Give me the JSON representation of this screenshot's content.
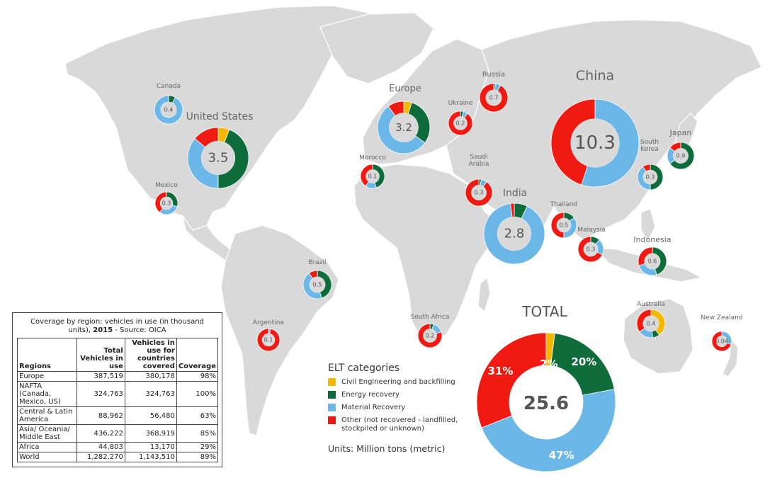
{
  "colors": {
    "civil": "#f5b800",
    "energy": "#0e6b3a",
    "material": "#6bb7e8",
    "other": "#f01a12",
    "land": "#d9d9d9"
  },
  "map_points": [
    {
      "name": "Canada",
      "value": "0.4",
      "shares": [
        0,
        8,
        92,
        0
      ]
    },
    {
      "name": "United States",
      "value": "3.5",
      "shares": [
        6,
        44,
        36,
        14
      ]
    },
    {
      "name": "Mexico",
      "value": "0.3",
      "shares": [
        0,
        30,
        30,
        40
      ]
    },
    {
      "name": "Brazil",
      "value": "0.5",
      "shares": [
        0,
        45,
        45,
        10
      ]
    },
    {
      "name": "Argentina",
      "value": "0.1",
      "shares": [
        0,
        0,
        3,
        97
      ]
    },
    {
      "name": "Europe",
      "value": "3.2",
      "shares": [
        5,
        30,
        55,
        10
      ]
    },
    {
      "name": "Morocco",
      "value": "0.1",
      "shares": [
        0,
        45,
        15,
        40
      ]
    },
    {
      "name": "Ukraine",
      "value": "0.2",
      "shares": [
        0,
        4,
        6,
        90
      ]
    },
    {
      "name": "Russia",
      "value": "0.7",
      "shares": [
        0,
        2,
        6,
        92
      ]
    },
    {
      "name": "Saudi\nArabia",
      "value": "0.3",
      "shares": [
        0,
        3,
        7,
        90
      ]
    },
    {
      "name": "South Africa",
      "value": "0.2",
      "shares": [
        0,
        5,
        15,
        80
      ]
    },
    {
      "name": "India",
      "value": "2.8",
      "shares": [
        0,
        7,
        91,
        2
      ]
    },
    {
      "name": "China",
      "value": "10.3",
      "shares": [
        0,
        0,
        55,
        45
      ]
    },
    {
      "name": "South\nKorea",
      "value": "0.3",
      "shares": [
        0,
        50,
        40,
        10
      ]
    },
    {
      "name": "Japan",
      "value": "0.9",
      "shares": [
        0,
        65,
        20,
        15
      ]
    },
    {
      "name": "Thailand",
      "value": "0.5",
      "shares": [
        0,
        15,
        35,
        50
      ]
    },
    {
      "name": "Malaysia",
      "value": "0.3",
      "shares": [
        0,
        12,
        20,
        68
      ]
    },
    {
      "name": "Indonesia",
      "value": "0.6",
      "shares": [
        0,
        45,
        25,
        30
      ]
    },
    {
      "name": "Australia",
      "value": "0.4",
      "shares": [
        40,
        8,
        17,
        35
      ]
    },
    {
      "name": "New Zealand",
      "value": "0.04",
      "shares": [
        0,
        0,
        30,
        70
      ]
    }
  ],
  "total": {
    "title": "TOTAL",
    "value": "25.6",
    "civil_pct": "2%",
    "energy_pct": "20%",
    "material_pct": "47%",
    "other_pct": "31%",
    "shares": [
      2,
      20,
      47,
      31
    ]
  },
  "legend": {
    "title": "ELT categories",
    "items": [
      {
        "label": "Civil Engineering and backfilling"
      },
      {
        "label": "Energy recovery"
      },
      {
        "label": "Material Recovery"
      },
      {
        "label": "Other (not recovered - landfilled, stockpiled or unknown)"
      }
    ],
    "units": "Units: Million tons (metric)"
  },
  "coverage_table": {
    "caption_a": "Coverage by region: vehicles in use (in thousand units), ",
    "caption_year": "2015",
    "caption_b": " - Source: OICA",
    "headers": [
      "Regions",
      "Total Vehicles in use",
      "Vehicles in use for countries covered",
      "Coverage"
    ],
    "rows": [
      [
        "Europe",
        "387,519",
        "380,178",
        "98%"
      ],
      [
        "NAFTA (Canada, Mexico, US)",
        "324,763",
        "324,763",
        "100%"
      ],
      [
        "Central & Latin America",
        "88,962",
        "56,480",
        "63%"
      ],
      [
        "Asia/ Oceania/ Middle East",
        "436,222",
        "368,919",
        "85%"
      ],
      [
        "Africa",
        "44,803",
        "13,170",
        "29%"
      ],
      [
        "World",
        "1,282,270",
        "1,143,510",
        "89%"
      ]
    ]
  }
}
